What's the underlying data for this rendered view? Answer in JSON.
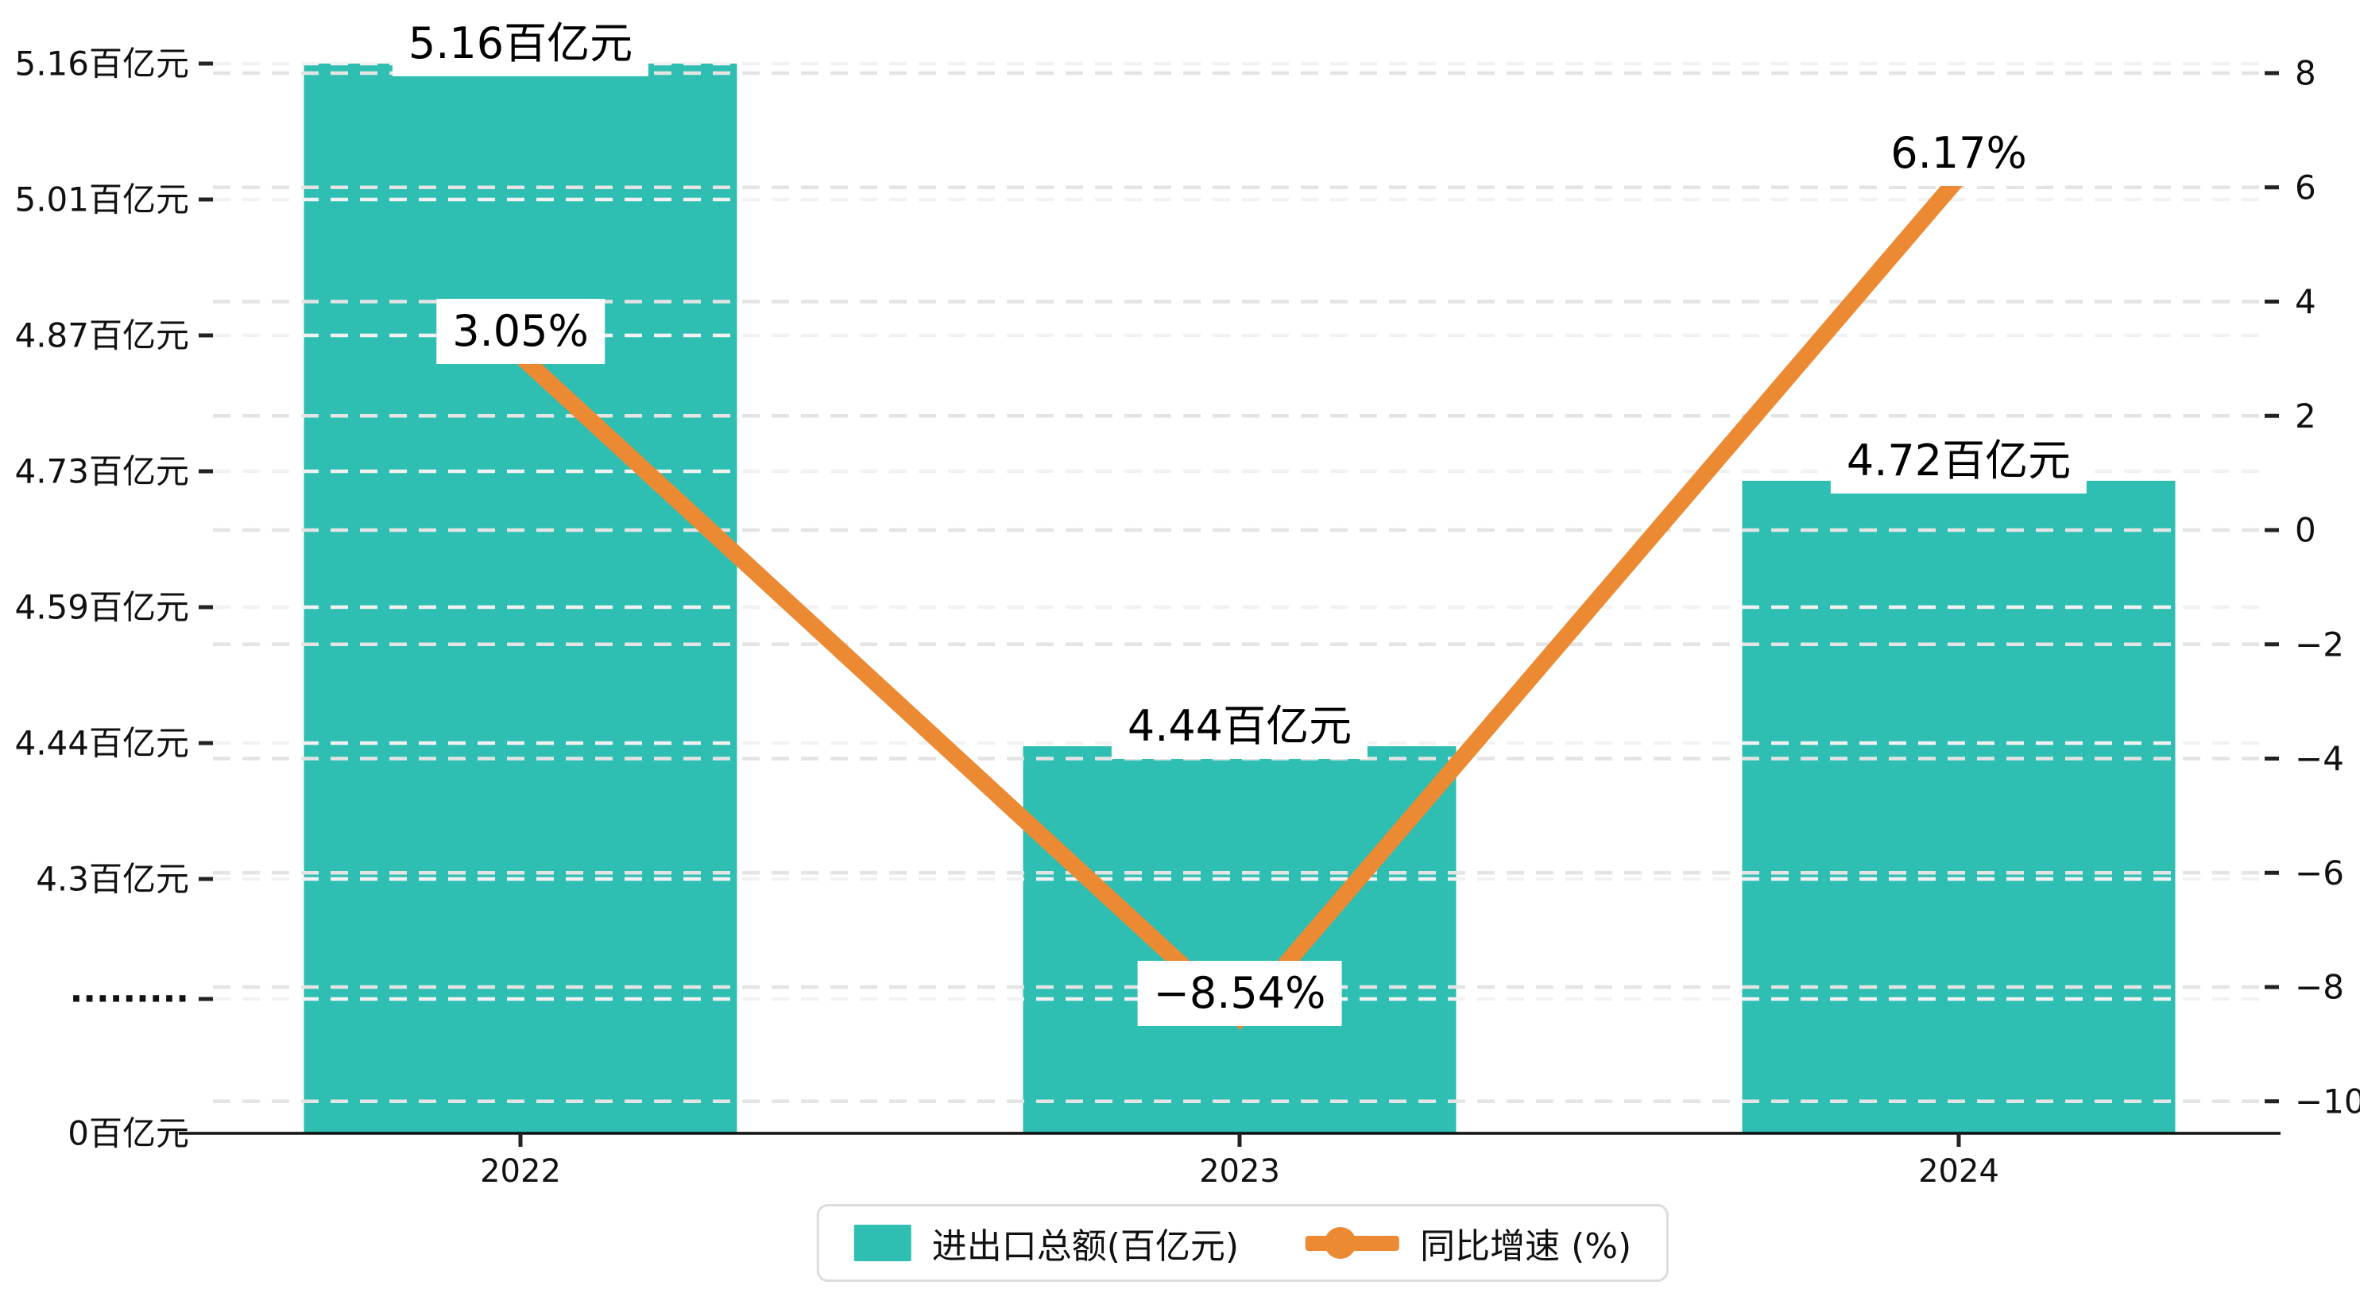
{
  "chart_data": {
    "type": "bar+line combo",
    "categories": [
      "2022",
      "2023",
      "2024"
    ],
    "series": [
      {
        "name": "进出口总额(百亿元)",
        "kind": "bar",
        "axis": "left",
        "color": "#2FBEB2",
        "values": [
          5.16,
          4.44,
          4.72
        ],
        "data_labels": [
          "5.16百亿元",
          "4.44百亿元",
          "4.72百亿元"
        ]
      },
      {
        "name": "同比增速 (%)",
        "kind": "line",
        "axis": "right",
        "color": "#EC8A33",
        "values": [
          3.05,
          -8.54,
          6.17
        ],
        "data_labels": [
          "3.05%",
          "−8.54%",
          "6.17%"
        ]
      }
    ],
    "left_axis": {
      "unit": "百亿元",
      "broken": true,
      "top_value": 5.16,
      "bottom_value": 4.3,
      "baseline_value": 0,
      "tick_labels": [
        "5.16百亿元",
        "5.01百亿元",
        "4.87百亿元",
        "4.73百亿元",
        "4.59百亿元",
        "4.44百亿元",
        "4.3百亿元",
        "·········",
        "0百亿元"
      ]
    },
    "right_axis": {
      "max": 8,
      "min": -10,
      "tick_labels": [
        "8",
        "6",
        "4",
        "2",
        "0",
        "−2",
        "−4",
        "−6",
        "−8",
        "−10"
      ]
    },
    "grid": {
      "dashed": true,
      "left_color": "#f2f2f2",
      "right_color": "#e4e4e4"
    },
    "axis_color": "#111111",
    "background": "#ffffff",
    "legend": {
      "position": "bottom-center",
      "entries": [
        "进出口总额(百亿元)",
        "同比增速 (%)"
      ]
    }
  }
}
